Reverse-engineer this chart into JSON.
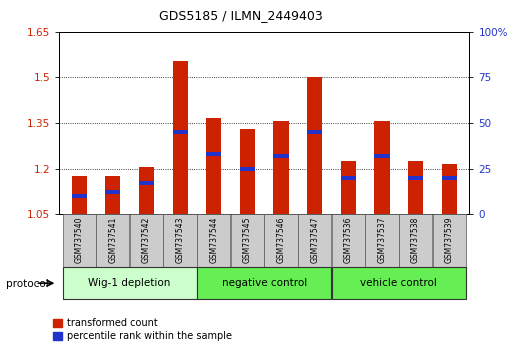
{
  "title": "GDS5185 / ILMN_2449403",
  "samples": [
    "GSM737540",
    "GSM737541",
    "GSM737542",
    "GSM737543",
    "GSM737544",
    "GSM737545",
    "GSM737546",
    "GSM737547",
    "GSM737536",
    "GSM737537",
    "GSM737538",
    "GSM737539"
  ],
  "transformed_count": [
    1.175,
    1.175,
    1.205,
    1.555,
    1.365,
    1.33,
    1.355,
    1.5,
    1.225,
    1.355,
    1.225,
    1.215
  ],
  "percentile_rank": [
    0.1,
    0.12,
    0.17,
    0.45,
    0.33,
    0.25,
    0.32,
    0.45,
    0.2,
    0.32,
    0.2,
    0.2
  ],
  "ymin": 1.05,
  "ymax": 1.65,
  "yright_min": 0,
  "yright_max": 100,
  "yticks_left": [
    1.05,
    1.2,
    1.35,
    1.5,
    1.65
  ],
  "yticks_right": [
    0,
    25,
    50,
    75,
    100
  ],
  "groups": [
    {
      "label": "Wig-1 depletion",
      "start": 0,
      "end": 3
    },
    {
      "label": "negative control",
      "start": 4,
      "end": 7
    },
    {
      "label": "vehicle control",
      "start": 8,
      "end": 11
    }
  ],
  "bar_color": "#cc2200",
  "blue_color": "#2233cc",
  "bar_width": 0.45,
  "group_bg_light": "#ccffcc",
  "group_bg_dark": "#66ee55",
  "legend_red_label": "transformed count",
  "legend_blue_label": "percentile rank within the sample",
  "protocol_label": "protocol",
  "sample_box_color": "#cccccc",
  "title_fontsize": 9,
  "tick_fontsize": 7.5,
  "group_fontsize": 7.5,
  "sample_fontsize": 5.5,
  "legend_fontsize": 7
}
